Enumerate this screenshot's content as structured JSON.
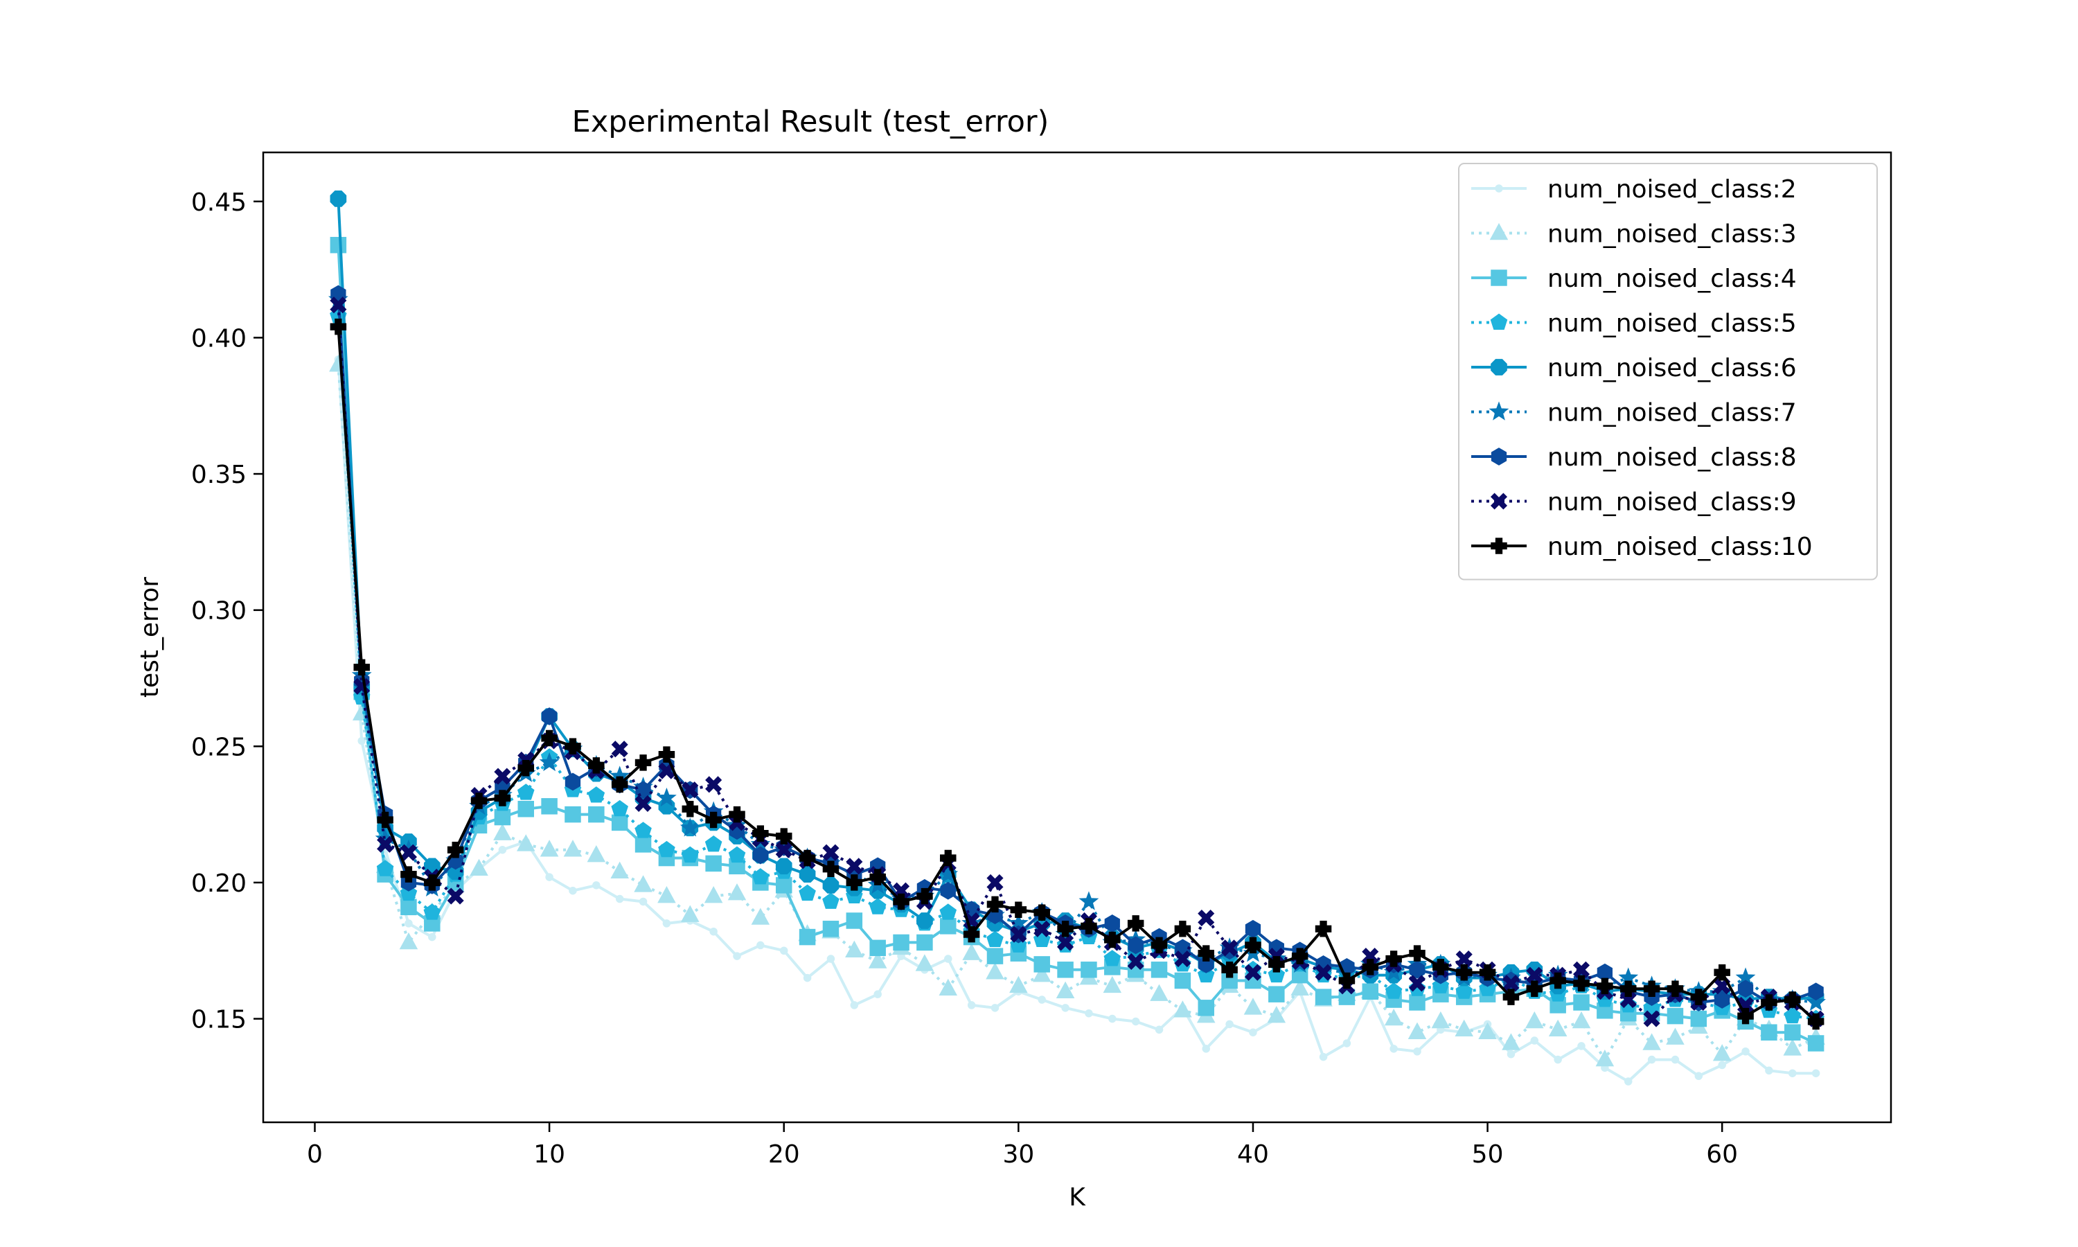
{
  "chart_data": {
    "type": "line",
    "title": "Experimental Result (test_error)",
    "xlabel": "K",
    "ylabel": "test_error",
    "xlim": [
      -2.2,
      67.2
    ],
    "ylim": [
      0.112,
      0.468
    ],
    "xticks": [
      0,
      10,
      20,
      30,
      40,
      50,
      60
    ],
    "yticks": [
      0.15,
      0.2,
      0.25,
      0.3,
      0.35,
      0.4,
      0.45
    ],
    "xtick_labels": [
      "0",
      "10",
      "20",
      "30",
      "40",
      "50",
      "60"
    ],
    "ytick_labels": [
      "0.15",
      "0.20",
      "0.25",
      "0.30",
      "0.35",
      "0.40",
      "0.45"
    ],
    "grid": false,
    "legend_position": "top-right",
    "x": [
      1,
      2,
      3,
      4,
      5,
      6,
      7,
      8,
      9,
      10,
      11,
      12,
      13,
      14,
      15,
      16,
      17,
      18,
      19,
      20,
      21,
      22,
      23,
      24,
      25,
      26,
      27,
      28,
      29,
      30,
      31,
      32,
      33,
      34,
      35,
      36,
      37,
      38,
      39,
      40,
      41,
      42,
      43,
      44,
      45,
      46,
      47,
      48,
      49,
      50,
      51,
      52,
      53,
      54,
      55,
      56,
      57,
      58,
      59,
      60,
      61,
      62,
      63,
      64
    ],
    "series": [
      {
        "name": "num_noised_class:2",
        "color": "#cdeef6",
        "marker": "point",
        "dash": "solid",
        "values": [
          0.392,
          0.252,
          0.212,
          0.185,
          0.18,
          0.197,
          0.205,
          0.212,
          0.215,
          0.202,
          0.197,
          0.199,
          0.194,
          0.193,
          0.185,
          0.186,
          0.182,
          0.173,
          0.177,
          0.175,
          0.165,
          0.172,
          0.155,
          0.159,
          0.173,
          0.168,
          0.172,
          0.155,
          0.154,
          0.16,
          0.157,
          0.154,
          0.152,
          0.15,
          0.149,
          0.146,
          0.154,
          0.139,
          0.148,
          0.145,
          0.15,
          0.16,
          0.136,
          0.141,
          0.158,
          0.139,
          0.138,
          0.146,
          0.145,
          0.148,
          0.137,
          0.142,
          0.135,
          0.14,
          0.132,
          0.127,
          0.135,
          0.135,
          0.129,
          0.133,
          0.138,
          0.131,
          0.13,
          0.13
        ]
      },
      {
        "name": "num_noised_class:3",
        "color": "#a8e1ee",
        "marker": "triangle",
        "dash": "dotted",
        "values": [
          0.39,
          0.262,
          0.206,
          0.178,
          0.189,
          0.199,
          0.205,
          0.218,
          0.214,
          0.212,
          0.212,
          0.21,
          0.204,
          0.199,
          0.195,
          0.188,
          0.195,
          0.196,
          0.187,
          0.197,
          0.181,
          0.182,
          0.175,
          0.171,
          0.176,
          0.17,
          0.161,
          0.174,
          0.167,
          0.162,
          0.166,
          0.16,
          0.165,
          0.162,
          0.166,
          0.159,
          0.153,
          0.151,
          0.162,
          0.154,
          0.151,
          0.161,
          0.157,
          0.159,
          0.16,
          0.15,
          0.145,
          0.149,
          0.146,
          0.145,
          0.141,
          0.149,
          0.146,
          0.149,
          0.135,
          0.15,
          0.141,
          0.143,
          0.147,
          0.137,
          0.15,
          0.146,
          0.139,
          0.143
        ]
      },
      {
        "name": "num_noised_class:4",
        "color": "#56c7e2",
        "marker": "square",
        "dash": "solid",
        "values": [
          0.434,
          0.27,
          0.203,
          0.191,
          0.185,
          0.2,
          0.221,
          0.224,
          0.227,
          0.228,
          0.225,
          0.225,
          0.222,
          0.214,
          0.209,
          0.209,
          0.207,
          0.206,
          0.2,
          0.199,
          0.18,
          0.183,
          0.186,
          0.176,
          0.178,
          0.178,
          0.184,
          0.18,
          0.173,
          0.174,
          0.17,
          0.168,
          0.168,
          0.169,
          0.168,
          0.168,
          0.164,
          0.154,
          0.164,
          0.164,
          0.159,
          0.166,
          0.158,
          0.158,
          0.16,
          0.157,
          0.156,
          0.159,
          0.158,
          0.159,
          0.16,
          0.161,
          0.155,
          0.156,
          0.153,
          0.152,
          0.152,
          0.151,
          0.15,
          0.153,
          0.149,
          0.145,
          0.145,
          0.141
        ]
      },
      {
        "name": "num_noised_class:5",
        "color": "#1fb4dd",
        "marker": "pentagon",
        "dash": "dotted",
        "values": [
          0.408,
          0.268,
          0.205,
          0.196,
          0.189,
          0.203,
          0.224,
          0.229,
          0.233,
          0.246,
          0.234,
          0.232,
          0.227,
          0.219,
          0.212,
          0.21,
          0.214,
          0.21,
          0.202,
          0.204,
          0.196,
          0.193,
          0.195,
          0.191,
          0.19,
          0.185,
          0.189,
          0.182,
          0.179,
          0.177,
          0.179,
          0.177,
          0.18,
          0.172,
          0.173,
          0.175,
          0.17,
          0.166,
          0.171,
          0.168,
          0.166,
          0.17,
          0.166,
          0.165,
          0.166,
          0.16,
          0.161,
          0.162,
          0.16,
          0.161,
          0.165,
          0.16,
          0.159,
          0.162,
          0.157,
          0.155,
          0.154,
          0.157,
          0.156,
          0.154,
          0.156,
          0.153,
          0.151,
          0.15
        ]
      },
      {
        "name": "num_noised_class:6",
        "color": "#0a96c8",
        "marker": "octagon",
        "dash": "solid",
        "values": [
          0.451,
          0.272,
          0.22,
          0.215,
          0.206,
          0.204,
          0.226,
          0.231,
          0.242,
          0.261,
          0.249,
          0.24,
          0.237,
          0.231,
          0.228,
          0.22,
          0.222,
          0.217,
          0.21,
          0.206,
          0.203,
          0.199,
          0.198,
          0.197,
          0.192,
          0.186,
          0.203,
          0.19,
          0.185,
          0.182,
          0.185,
          0.186,
          0.183,
          0.18,
          0.176,
          0.178,
          0.175,
          0.17,
          0.174,
          0.178,
          0.171,
          0.172,
          0.169,
          0.168,
          0.166,
          0.166,
          0.168,
          0.17,
          0.165,
          0.165,
          0.167,
          0.168,
          0.162,
          0.163,
          0.16,
          0.161,
          0.16,
          0.159,
          0.159,
          0.159,
          0.157,
          0.158,
          0.157,
          0.158
        ]
      },
      {
        "name": "num_noised_class:7",
        "color": "#0878b8",
        "marker": "star",
        "dash": "dotted",
        "values": [
          0.414,
          0.276,
          0.216,
          0.212,
          0.198,
          0.208,
          0.228,
          0.232,
          0.24,
          0.244,
          0.249,
          0.243,
          0.239,
          0.235,
          0.231,
          0.22,
          0.226,
          0.221,
          0.214,
          0.212,
          0.209,
          0.207,
          0.203,
          0.199,
          0.194,
          0.195,
          0.203,
          0.185,
          0.188,
          0.185,
          0.189,
          0.181,
          0.193,
          0.178,
          0.179,
          0.177,
          0.175,
          0.172,
          0.176,
          0.174,
          0.172,
          0.17,
          0.168,
          0.167,
          0.17,
          0.167,
          0.17,
          0.17,
          0.165,
          0.166,
          0.165,
          0.163,
          0.166,
          0.163,
          0.162,
          0.165,
          0.162,
          0.161,
          0.16,
          0.16,
          0.165,
          0.157,
          0.157,
          0.156
        ]
      },
      {
        "name": "num_noised_class:8",
        "color": "#0a4b9e",
        "marker": "hexagon",
        "dash": "solid",
        "values": [
          0.416,
          0.274,
          0.225,
          0.2,
          0.199,
          0.208,
          0.23,
          0.235,
          0.244,
          0.261,
          0.237,
          0.242,
          0.236,
          0.234,
          0.243,
          0.234,
          0.225,
          0.219,
          0.21,
          0.213,
          0.209,
          0.207,
          0.203,
          0.206,
          0.193,
          0.198,
          0.197,
          0.19,
          0.188,
          0.181,
          0.189,
          0.185,
          0.183,
          0.185,
          0.177,
          0.18,
          0.176,
          0.17,
          0.175,
          0.183,
          0.176,
          0.175,
          0.17,
          0.169,
          0.168,
          0.17,
          0.168,
          0.166,
          0.167,
          0.165,
          0.164,
          0.163,
          0.165,
          0.164,
          0.167,
          0.16,
          0.158,
          0.159,
          0.156,
          0.157,
          0.161,
          0.156,
          0.157,
          0.16
        ]
      },
      {
        "name": "num_noised_class:9",
        "color": "#0b0a66",
        "marker": "x",
        "dash": "dotted",
        "values": [
          0.412,
          0.272,
          0.214,
          0.211,
          0.202,
          0.195,
          0.232,
          0.239,
          0.245,
          0.252,
          0.248,
          0.241,
          0.249,
          0.229,
          0.241,
          0.234,
          0.236,
          0.222,
          0.216,
          0.212,
          0.208,
          0.211,
          0.206,
          0.203,
          0.197,
          0.193,
          0.207,
          0.186,
          0.2,
          0.181,
          0.183,
          0.178,
          0.186,
          0.178,
          0.171,
          0.175,
          0.172,
          0.187,
          0.176,
          0.167,
          0.173,
          0.171,
          0.167,
          0.162,
          0.173,
          0.17,
          0.163,
          0.168,
          0.172,
          0.168,
          0.163,
          0.166,
          0.166,
          0.168,
          0.16,
          0.157,
          0.15,
          0.159,
          0.156,
          0.162,
          0.155,
          0.158,
          0.156,
          0.15
        ]
      },
      {
        "name": "num_noised_class:10",
        "color": "#000000",
        "marker": "plus",
        "dash": "solid",
        "values": [
          0.404,
          0.279,
          0.223,
          0.203,
          0.2,
          0.212,
          0.23,
          0.231,
          0.242,
          0.253,
          0.25,
          0.243,
          0.236,
          0.244,
          0.247,
          0.227,
          0.223,
          0.225,
          0.218,
          0.217,
          0.209,
          0.205,
          0.2,
          0.202,
          0.193,
          0.195,
          0.209,
          0.181,
          0.192,
          0.19,
          0.189,
          0.183,
          0.184,
          0.179,
          0.185,
          0.177,
          0.183,
          0.174,
          0.168,
          0.177,
          0.17,
          0.173,
          0.183,
          0.164,
          0.169,
          0.172,
          0.174,
          0.169,
          0.167,
          0.167,
          0.158,
          0.161,
          0.164,
          0.163,
          0.162,
          0.161,
          0.161,
          0.161,
          0.158,
          0.167,
          0.151,
          0.156,
          0.157,
          0.149
        ]
      }
    ]
  }
}
